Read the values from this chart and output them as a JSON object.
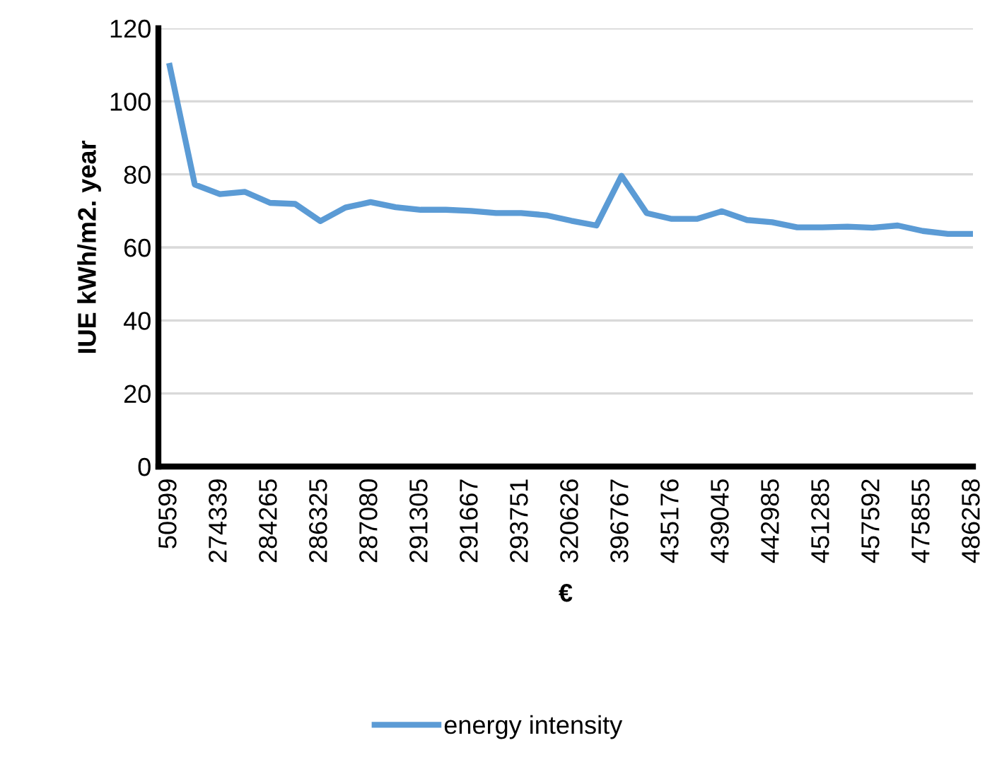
{
  "chart_data": {
    "type": "line",
    "xlabel": "€",
    "ylabel": "IUE kWh/m2. year",
    "categories": [
      "50599",
      null,
      "274339",
      null,
      "284265",
      null,
      "286325",
      null,
      "287080",
      null,
      "291305",
      null,
      "291667",
      null,
      "293751",
      null,
      "320626",
      null,
      "396767",
      null,
      "435176",
      null,
      "439045",
      null,
      "442985",
      null,
      "451285",
      null,
      "457592",
      null,
      "475855",
      null,
      "486258"
    ],
    "series": [
      {
        "name": "energy intensity",
        "color": "#5b9bd5",
        "values": [
          109.7,
          77.2,
          74.6,
          75.2,
          72.2,
          71.9,
          67.2,
          70.9,
          72.4,
          71.0,
          70.3,
          70.3,
          70.0,
          69.4,
          69.4,
          68.8,
          67.3,
          66.0,
          79.6,
          69.4,
          67.8,
          67.8,
          69.9,
          67.5,
          66.9,
          65.5,
          65.5,
          65.7,
          65.4,
          66.0,
          64.5,
          63.7,
          63.7
        ]
      }
    ],
    "ylim": [
      0,
      120
    ],
    "yticks": [
      0,
      20,
      40,
      60,
      80,
      100,
      120
    ],
    "grid": "y",
    "legend": "bottom",
    "marker": "none",
    "line_style": "solid"
  }
}
